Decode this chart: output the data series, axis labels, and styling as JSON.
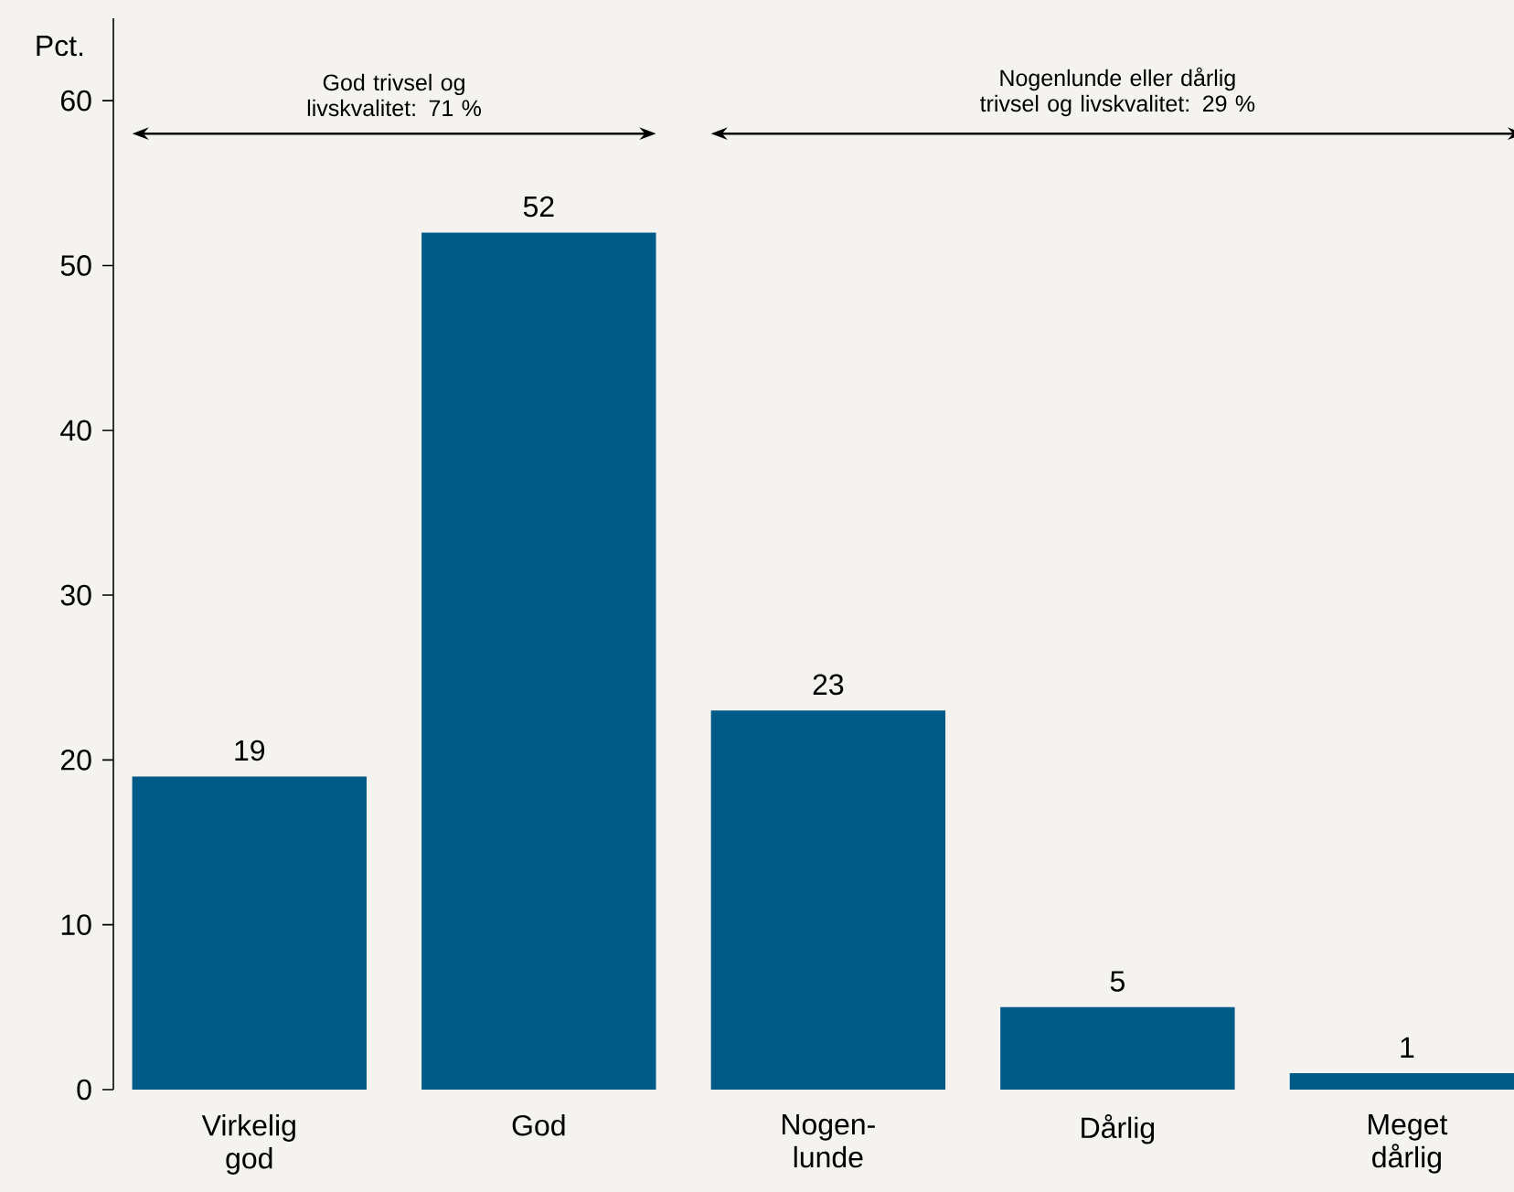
{
  "chart_data": {
    "type": "bar",
    "ylabel": "Pct.",
    "categories": [
      "Virkelig god",
      "God",
      "Nogen-lunde",
      "Dårlig",
      "Meget dårlig"
    ],
    "values": [
      19,
      52,
      23,
      5,
      1
    ],
    "color": "#005a87",
    "data_labels": true,
    "ylim": [
      0,
      65
    ],
    "yticks": [
      0,
      10,
      20,
      30,
      40,
      50,
      60
    ],
    "grid": false,
    "annotations": [
      "God trivsel og livskvalitet: 71 %",
      "Nogenlunde eller dårlig trivsel og livskvalitet: 29 %"
    ]
  }
}
